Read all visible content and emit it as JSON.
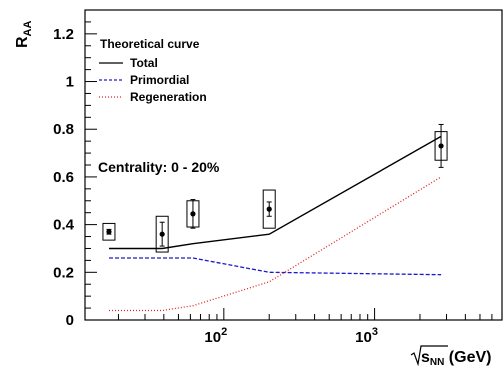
{
  "chart_data": {
    "type": "line",
    "xscale": "log",
    "xlim": [
      12,
      7000
    ],
    "ylim": [
      0,
      1.3
    ],
    "ylabel": {
      "main": "R",
      "sub": "AA"
    },
    "xlabel": {
      "sqrt_arg": "s",
      "sqrt_sub": "NN",
      "suffix": " (GeV)"
    },
    "y_ticks": [
      {
        "v": 0,
        "label": "0"
      },
      {
        "v": 0.2,
        "label": "0.2"
      },
      {
        "v": 0.4,
        "label": "0.4"
      },
      {
        "v": 0.6,
        "label": "0.6"
      },
      {
        "v": 0.8,
        "label": "0.8"
      },
      {
        "v": 1.0,
        "label": "1"
      },
      {
        "v": 1.2,
        "label": "1.2"
      }
    ],
    "x_ticks": [
      {
        "v": 100,
        "base": "10",
        "exp": "2"
      },
      {
        "v": 1000,
        "base": "10",
        "exp": "3"
      }
    ],
    "legend": {
      "title": "Theoretical curve",
      "entries": [
        "Total",
        "Primordial",
        "Regeneration"
      ]
    },
    "annotation": "Centrality: 0 - 20%",
    "series": [
      {
        "name": "Total",
        "style": "solid",
        "color": "#000000",
        "points": [
          [
            17.3,
            0.3
          ],
          [
            39,
            0.3
          ],
          [
            62.4,
            0.32
          ],
          [
            200,
            0.36
          ],
          [
            2760,
            0.77
          ]
        ]
      },
      {
        "name": "Primordial",
        "style": "dashed",
        "color": "#1a1acc",
        "points": [
          [
            17.3,
            0.26
          ],
          [
            39,
            0.26
          ],
          [
            62.4,
            0.26
          ],
          [
            200,
            0.2
          ],
          [
            2760,
            0.19
          ]
        ]
      },
      {
        "name": "Regeneration",
        "style": "dotted",
        "color": "#e02020",
        "points": [
          [
            17.3,
            0.04
          ],
          [
            39,
            0.04
          ],
          [
            62.4,
            0.06
          ],
          [
            200,
            0.16
          ],
          [
            2760,
            0.6
          ]
        ]
      }
    ],
    "measurements": [
      {
        "x": 17.3,
        "y": 0.37,
        "stat": 0.01,
        "sys": 0.035
      },
      {
        "x": 39,
        "y": 0.36,
        "stat": 0.05,
        "sys": 0.075
      },
      {
        "x": 62.4,
        "y": 0.445,
        "stat": 0.06,
        "sys": 0.055
      },
      {
        "x": 200,
        "y": 0.465,
        "stat": 0.03,
        "sys": 0.08
      },
      {
        "x": 2760,
        "y": 0.73,
        "stat": 0.09,
        "sys": 0.06
      }
    ]
  }
}
